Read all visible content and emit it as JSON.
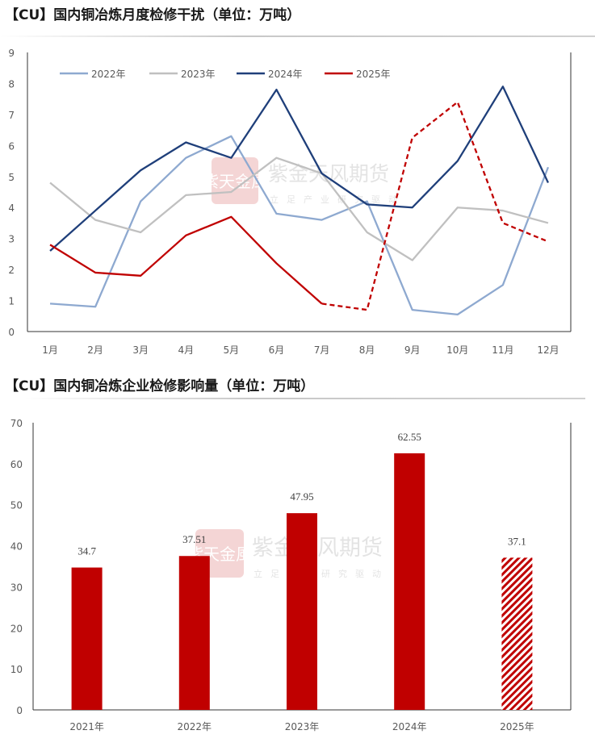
{
  "chart_data": [
    {
      "type": "line",
      "title": "【CU】国内铜冶炼月度检修干扰（单位：万吨）",
      "categories": [
        "1月",
        "2月",
        "3月",
        "4月",
        "5月",
        "6月",
        "7月",
        "8月",
        "9月",
        "10月",
        "11月",
        "12月"
      ],
      "ylim": [
        0,
        9
      ],
      "yticks": [
        0,
        1,
        2,
        3,
        4,
        5,
        6,
        7,
        8,
        9
      ],
      "grid": false,
      "legend_position": "top",
      "series": [
        {
          "name": "2022年",
          "color": "#8ea9d0",
          "values": [
            0.9,
            0.8,
            4.2,
            5.6,
            6.3,
            3.8,
            3.6,
            4.2,
            0.7,
            0.55,
            1.5,
            5.3
          ]
        },
        {
          "name": "2023年",
          "color": "#c0c0c0",
          "values": [
            4.8,
            3.6,
            3.2,
            4.4,
            4.5,
            5.6,
            5.1,
            3.2,
            2.3,
            4.0,
            3.9,
            3.5
          ]
        },
        {
          "name": "2024年",
          "color": "#1f3f7a",
          "values": [
            2.6,
            3.9,
            5.2,
            6.1,
            5.6,
            7.8,
            5.1,
            4.1,
            4.0,
            5.5,
            7.9,
            4.8
          ]
        },
        {
          "name": "2025年",
          "color": "#c00000",
          "values": [
            2.8,
            1.9,
            1.8,
            3.1,
            3.7,
            2.2,
            0.9,
            0.7,
            6.25,
            7.4,
            3.5,
            2.9
          ],
          "dashed_from_index": 6
        }
      ]
    },
    {
      "type": "bar",
      "title": "【CU】国内铜冶炼企业检修影响量（单位：万吨）",
      "categories": [
        "2021年",
        "2022年",
        "2023年",
        "2024年",
        "2025年"
      ],
      "values": [
        34.7,
        37.51,
        47.95,
        62.55,
        37.1
      ],
      "value_labels": [
        "34.7",
        "37.51",
        "47.95",
        "62.55",
        "37.1"
      ],
      "ylim": [
        0,
        70
      ],
      "yticks": [
        0,
        10,
        20,
        30,
        40,
        50,
        60,
        70
      ],
      "grid": false,
      "color": "#c00000",
      "hatched_index": 4
    }
  ],
  "watermark": {
    "name": "紫金天风期货",
    "tagline": "立足产业研究驱动",
    "logo_chars": "紫天金風"
  }
}
